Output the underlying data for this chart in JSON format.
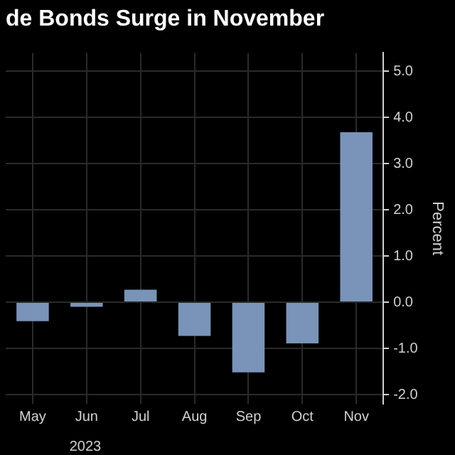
{
  "chart_data": {
    "type": "bar",
    "title": "de Bonds Surge in November",
    "ylabel": "Percent",
    "categories": [
      "May",
      "Jun",
      "Jul",
      "Aug",
      "Sep",
      "Oct",
      "Nov"
    ],
    "values": [
      -0.41,
      -0.1,
      0.27,
      -0.73,
      -1.52,
      -0.89,
      3.68
    ],
    "color": "#7a93b8",
    "ylim": [
      -2.2,
      5.4
    ],
    "yticks": [
      {
        "value": -2,
        "label": "-2.0"
      },
      {
        "value": -1,
        "label": "-1.0"
      },
      {
        "value": 0,
        "label": "0.0"
      },
      {
        "value": 1,
        "label": "1.0"
      },
      {
        "value": 2,
        "label": "2.0"
      },
      {
        "value": 3,
        "label": "3.0"
      },
      {
        "value": 4,
        "label": "4.0"
      },
      {
        "value": 5,
        "label": "5.0"
      }
    ],
    "grid": true,
    "legend": false,
    "annotations": [
      "2023"
    ]
  }
}
